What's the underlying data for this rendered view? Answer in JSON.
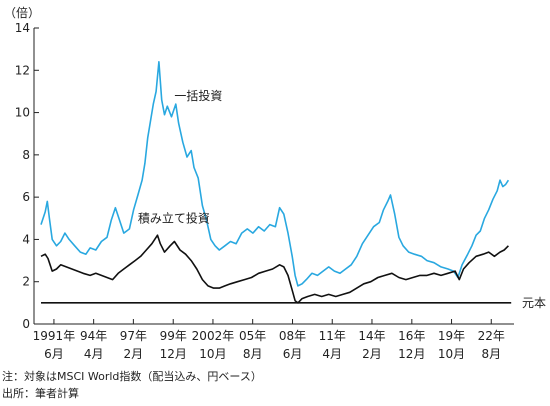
{
  "chart_data": {
    "type": "line",
    "ylabel": "（倍）",
    "ylim": [
      0,
      14
    ],
    "yticks": [
      0,
      2,
      4,
      6,
      8,
      10,
      12,
      14
    ],
    "xlim": [
      1990.0,
      2024.2
    ],
    "xticks": [
      {
        "x": 1991.42,
        "line1": "1991年",
        "line2": "6月"
      },
      {
        "x": 1994.25,
        "line1": "94年",
        "line2": "4月"
      },
      {
        "x": 1997.08,
        "line1": "97年",
        "line2": "2月"
      },
      {
        "x": 1999.92,
        "line1": "99年",
        "line2": "12月"
      },
      {
        "x": 2002.75,
        "line1": "2002年",
        "line2": "10月"
      },
      {
        "x": 2005.58,
        "line1": "05年",
        "line2": "8月"
      },
      {
        "x": 2008.42,
        "line1": "08年",
        "line2": "6月"
      },
      {
        "x": 2011.25,
        "line1": "11年",
        "line2": "4月"
      },
      {
        "x": 2014.08,
        "line1": "14年",
        "line2": "2月"
      },
      {
        "x": 2016.92,
        "line1": "16年",
        "line2": "12月"
      },
      {
        "x": 2019.75,
        "line1": "19年",
        "line2": "10月"
      },
      {
        "x": 2022.58,
        "line1": "22年",
        "line2": "8月"
      }
    ],
    "series": [
      {
        "name": "一括投資",
        "color": "#29a8e0",
        "points": [
          [
            1990.5,
            4.7
          ],
          [
            1990.8,
            5.3
          ],
          [
            1990.95,
            5.8
          ],
          [
            1991.1,
            5.0
          ],
          [
            1991.3,
            4.0
          ],
          [
            1991.6,
            3.7
          ],
          [
            1991.9,
            3.9
          ],
          [
            1992.2,
            4.3
          ],
          [
            1992.5,
            4.0
          ],
          [
            1992.9,
            3.7
          ],
          [
            1993.3,
            3.4
          ],
          [
            1993.7,
            3.3
          ],
          [
            1994.0,
            3.6
          ],
          [
            1994.4,
            3.5
          ],
          [
            1994.8,
            3.9
          ],
          [
            1995.2,
            4.1
          ],
          [
            1995.5,
            4.9
          ],
          [
            1995.8,
            5.5
          ],
          [
            1996.1,
            4.9
          ],
          [
            1996.4,
            4.3
          ],
          [
            1996.8,
            4.5
          ],
          [
            1997.1,
            5.4
          ],
          [
            1997.4,
            6.1
          ],
          [
            1997.7,
            6.8
          ],
          [
            1997.9,
            7.6
          ],
          [
            1998.1,
            8.8
          ],
          [
            1998.3,
            9.6
          ],
          [
            1998.5,
            10.4
          ],
          [
            1998.7,
            11.0
          ],
          [
            1998.9,
            12.4
          ],
          [
            1999.1,
            10.6
          ],
          [
            1999.3,
            9.9
          ],
          [
            1999.5,
            10.3
          ],
          [
            1999.8,
            9.8
          ],
          [
            2000.1,
            10.4
          ],
          [
            2000.3,
            9.5
          ],
          [
            2000.6,
            8.6
          ],
          [
            2000.9,
            7.9
          ],
          [
            2001.2,
            8.2
          ],
          [
            2001.4,
            7.4
          ],
          [
            2001.7,
            6.9
          ],
          [
            2002.0,
            5.6
          ],
          [
            2002.3,
            4.9
          ],
          [
            2002.6,
            4.0
          ],
          [
            2002.9,
            3.7
          ],
          [
            2003.2,
            3.5
          ],
          [
            2003.6,
            3.7
          ],
          [
            2004.0,
            3.9
          ],
          [
            2004.4,
            3.8
          ],
          [
            2004.8,
            4.3
          ],
          [
            2005.2,
            4.5
          ],
          [
            2005.6,
            4.3
          ],
          [
            2006.0,
            4.6
          ],
          [
            2006.4,
            4.4
          ],
          [
            2006.8,
            4.7
          ],
          [
            2007.2,
            4.6
          ],
          [
            2007.5,
            5.5
          ],
          [
            2007.8,
            5.2
          ],
          [
            2008.1,
            4.3
          ],
          [
            2008.4,
            3.2
          ],
          [
            2008.6,
            2.3
          ],
          [
            2008.8,
            1.8
          ],
          [
            2009.1,
            1.9
          ],
          [
            2009.4,
            2.1
          ],
          [
            2009.8,
            2.4
          ],
          [
            2010.2,
            2.3
          ],
          [
            2010.6,
            2.5
          ],
          [
            2011.0,
            2.7
          ],
          [
            2011.4,
            2.5
          ],
          [
            2011.8,
            2.4
          ],
          [
            2012.2,
            2.6
          ],
          [
            2012.6,
            2.8
          ],
          [
            2013.0,
            3.2
          ],
          [
            2013.4,
            3.8
          ],
          [
            2013.8,
            4.2
          ],
          [
            2014.2,
            4.6
          ],
          [
            2014.6,
            4.8
          ],
          [
            2014.9,
            5.4
          ],
          [
            2015.2,
            5.8
          ],
          [
            2015.4,
            6.1
          ],
          [
            2015.7,
            5.2
          ],
          [
            2016.0,
            4.1
          ],
          [
            2016.3,
            3.7
          ],
          [
            2016.7,
            3.4
          ],
          [
            2017.1,
            3.3
          ],
          [
            2017.6,
            3.2
          ],
          [
            2018.0,
            3.0
          ],
          [
            2018.5,
            2.9
          ],
          [
            2019.0,
            2.7
          ],
          [
            2019.5,
            2.6
          ],
          [
            2019.9,
            2.5
          ],
          [
            2020.2,
            2.2
          ],
          [
            2020.5,
            2.8
          ],
          [
            2020.9,
            3.3
          ],
          [
            2021.2,
            3.7
          ],
          [
            2021.5,
            4.2
          ],
          [
            2021.8,
            4.4
          ],
          [
            2022.1,
            5.0
          ],
          [
            2022.4,
            5.4
          ],
          [
            2022.7,
            5.9
          ],
          [
            2023.0,
            6.3
          ],
          [
            2023.2,
            6.8
          ],
          [
            2023.4,
            6.5
          ],
          [
            2023.6,
            6.6
          ],
          [
            2023.8,
            6.8
          ]
        ]
      },
      {
        "name": "積み立て投資",
        "color": "#111111",
        "points": [
          [
            1990.5,
            3.2
          ],
          [
            1990.8,
            3.3
          ],
          [
            1991.0,
            3.1
          ],
          [
            1991.3,
            2.5
          ],
          [
            1991.6,
            2.6
          ],
          [
            1991.9,
            2.8
          ],
          [
            1992.3,
            2.7
          ],
          [
            1992.7,
            2.6
          ],
          [
            1993.1,
            2.5
          ],
          [
            1993.5,
            2.4
          ],
          [
            1994.0,
            2.3
          ],
          [
            1994.4,
            2.4
          ],
          [
            1994.8,
            2.3
          ],
          [
            1995.2,
            2.2
          ],
          [
            1995.6,
            2.1
          ],
          [
            1996.0,
            2.4
          ],
          [
            1996.4,
            2.6
          ],
          [
            1996.8,
            2.8
          ],
          [
            1997.2,
            3.0
          ],
          [
            1997.6,
            3.2
          ],
          [
            1998.0,
            3.5
          ],
          [
            1998.4,
            3.8
          ],
          [
            1998.8,
            4.2
          ],
          [
            1999.0,
            3.8
          ],
          [
            1999.3,
            3.4
          ],
          [
            1999.7,
            3.7
          ],
          [
            2000.0,
            3.9
          ],
          [
            2000.4,
            3.5
          ],
          [
            2000.8,
            3.3
          ],
          [
            2001.2,
            3.0
          ],
          [
            2001.6,
            2.6
          ],
          [
            2002.0,
            2.1
          ],
          [
            2002.4,
            1.8
          ],
          [
            2002.8,
            1.7
          ],
          [
            2003.2,
            1.7
          ],
          [
            2003.6,
            1.8
          ],
          [
            2004.0,
            1.9
          ],
          [
            2004.5,
            2.0
          ],
          [
            2005.0,
            2.1
          ],
          [
            2005.5,
            2.2
          ],
          [
            2006.0,
            2.4
          ],
          [
            2006.5,
            2.5
          ],
          [
            2007.0,
            2.6
          ],
          [
            2007.5,
            2.8
          ],
          [
            2007.8,
            2.7
          ],
          [
            2008.1,
            2.3
          ],
          [
            2008.4,
            1.6
          ],
          [
            2008.6,
            1.1
          ],
          [
            2008.8,
            1.0
          ],
          [
            2009.1,
            1.2
          ],
          [
            2009.5,
            1.3
          ],
          [
            2010.0,
            1.4
          ],
          [
            2010.5,
            1.3
          ],
          [
            2011.0,
            1.4
          ],
          [
            2011.5,
            1.3
          ],
          [
            2012.0,
            1.4
          ],
          [
            2012.5,
            1.5
          ],
          [
            2013.0,
            1.7
          ],
          [
            2013.5,
            1.9
          ],
          [
            2014.0,
            2.0
          ],
          [
            2014.5,
            2.2
          ],
          [
            2015.0,
            2.3
          ],
          [
            2015.5,
            2.4
          ],
          [
            2016.0,
            2.2
          ],
          [
            2016.5,
            2.1
          ],
          [
            2017.0,
            2.2
          ],
          [
            2017.5,
            2.3
          ],
          [
            2018.0,
            2.3
          ],
          [
            2018.5,
            2.4
          ],
          [
            2019.0,
            2.3
          ],
          [
            2019.5,
            2.4
          ],
          [
            2020.0,
            2.5
          ],
          [
            2020.3,
            2.1
          ],
          [
            2020.6,
            2.6
          ],
          [
            2021.0,
            2.9
          ],
          [
            2021.5,
            3.2
          ],
          [
            2022.0,
            3.3
          ],
          [
            2022.4,
            3.4
          ],
          [
            2022.8,
            3.2
          ],
          [
            2023.2,
            3.4
          ],
          [
            2023.5,
            3.5
          ],
          [
            2023.8,
            3.7
          ]
        ]
      }
    ],
    "reference_line": {
      "y": 1,
      "label": "元本",
      "color": "#111111"
    },
    "annotations": [
      {
        "text": "一括投資",
        "x": 2000.0,
        "y": 10.6
      },
      {
        "text": "積み立て投資",
        "x": 1997.4,
        "y": 4.8
      }
    ]
  },
  "footnotes": {
    "note": "注：対象はMSCI World指数（配当込み、円ベース）",
    "source": "出所：筆者計算"
  }
}
